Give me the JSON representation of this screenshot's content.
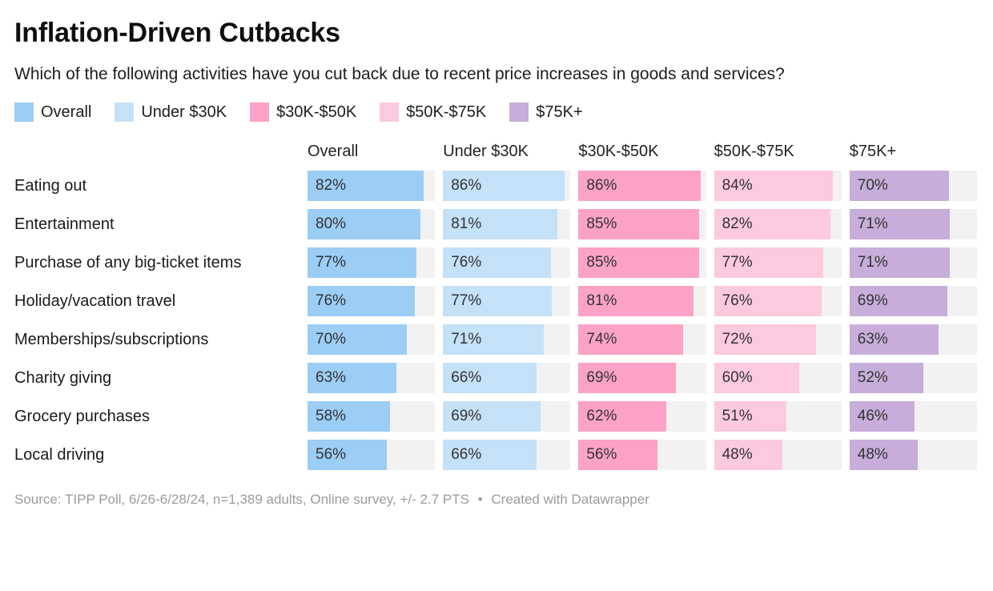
{
  "title": "Inflation-Driven Cutbacks",
  "subtitle": "Which of the following activities have you cut back due to recent price increases in goods and services?",
  "footer": {
    "source": "Source: TIPP Poll, 6/26-6/28/24, n=1,389 adults, Online survey, +/- 2.7 PTS",
    "separator": "•",
    "attribution": "Created with Datawrapper"
  },
  "chart_data": {
    "type": "bar",
    "title": "Inflation-Driven Cutbacks",
    "subtitle": "Which of the following activities have you cut back due to recent price increases in goods and services?",
    "unit": "%",
    "scale_max": 90,
    "grid": false,
    "legend_position": "top",
    "track_color": "#f2f2f2",
    "categories": [
      "Eating out",
      "Entertainment",
      "Purchase of any big-ticket items",
      "Holiday/vacation travel",
      "Memberships/subscriptions",
      "Charity giving",
      "Grocery purchases",
      "Local driving"
    ],
    "series": [
      {
        "name": "Overall",
        "color": "#9bcdf5",
        "values": [
          82,
          80,
          77,
          76,
          70,
          63,
          58,
          56
        ]
      },
      {
        "name": "Under $30K",
        "color": "#c4e1f8",
        "values": [
          86,
          81,
          76,
          77,
          71,
          66,
          69,
          66
        ]
      },
      {
        "name": "$30K-$50K",
        "color": "#fba2c6",
        "values": [
          86,
          85,
          85,
          81,
          74,
          69,
          62,
          56
        ]
      },
      {
        "name": "$50K-$75K",
        "color": "#fcc9de",
        "values": [
          84,
          82,
          77,
          76,
          72,
          60,
          51,
          48
        ]
      },
      {
        "name": "$75K+",
        "color": "#c7aeda",
        "values": [
          70,
          71,
          71,
          69,
          63,
          52,
          46,
          48
        ]
      }
    ]
  }
}
